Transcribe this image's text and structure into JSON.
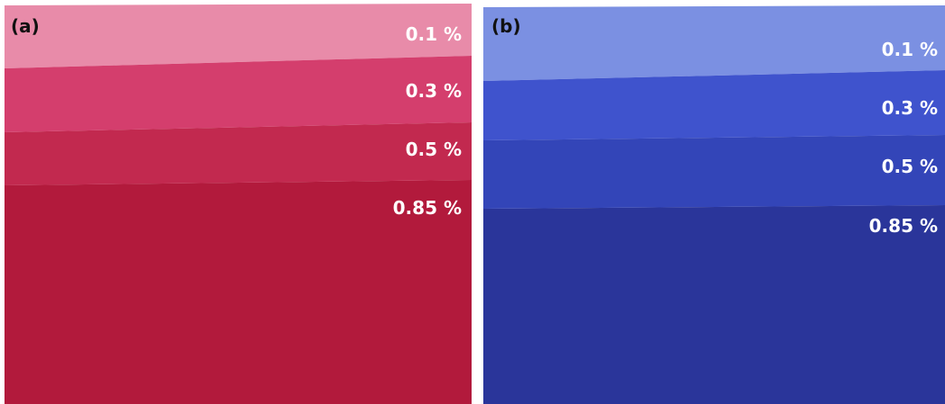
{
  "panels": [
    {
      "label": "(a)",
      "bands": [
        "0.1 %",
        "0.3 %",
        "0.5 %",
        "0.85 %"
      ]
    },
    {
      "label": "(b)",
      "bands": [
        "0.1 %",
        "0.3 %",
        "0.5 %",
        "0.85 %"
      ]
    }
  ]
}
